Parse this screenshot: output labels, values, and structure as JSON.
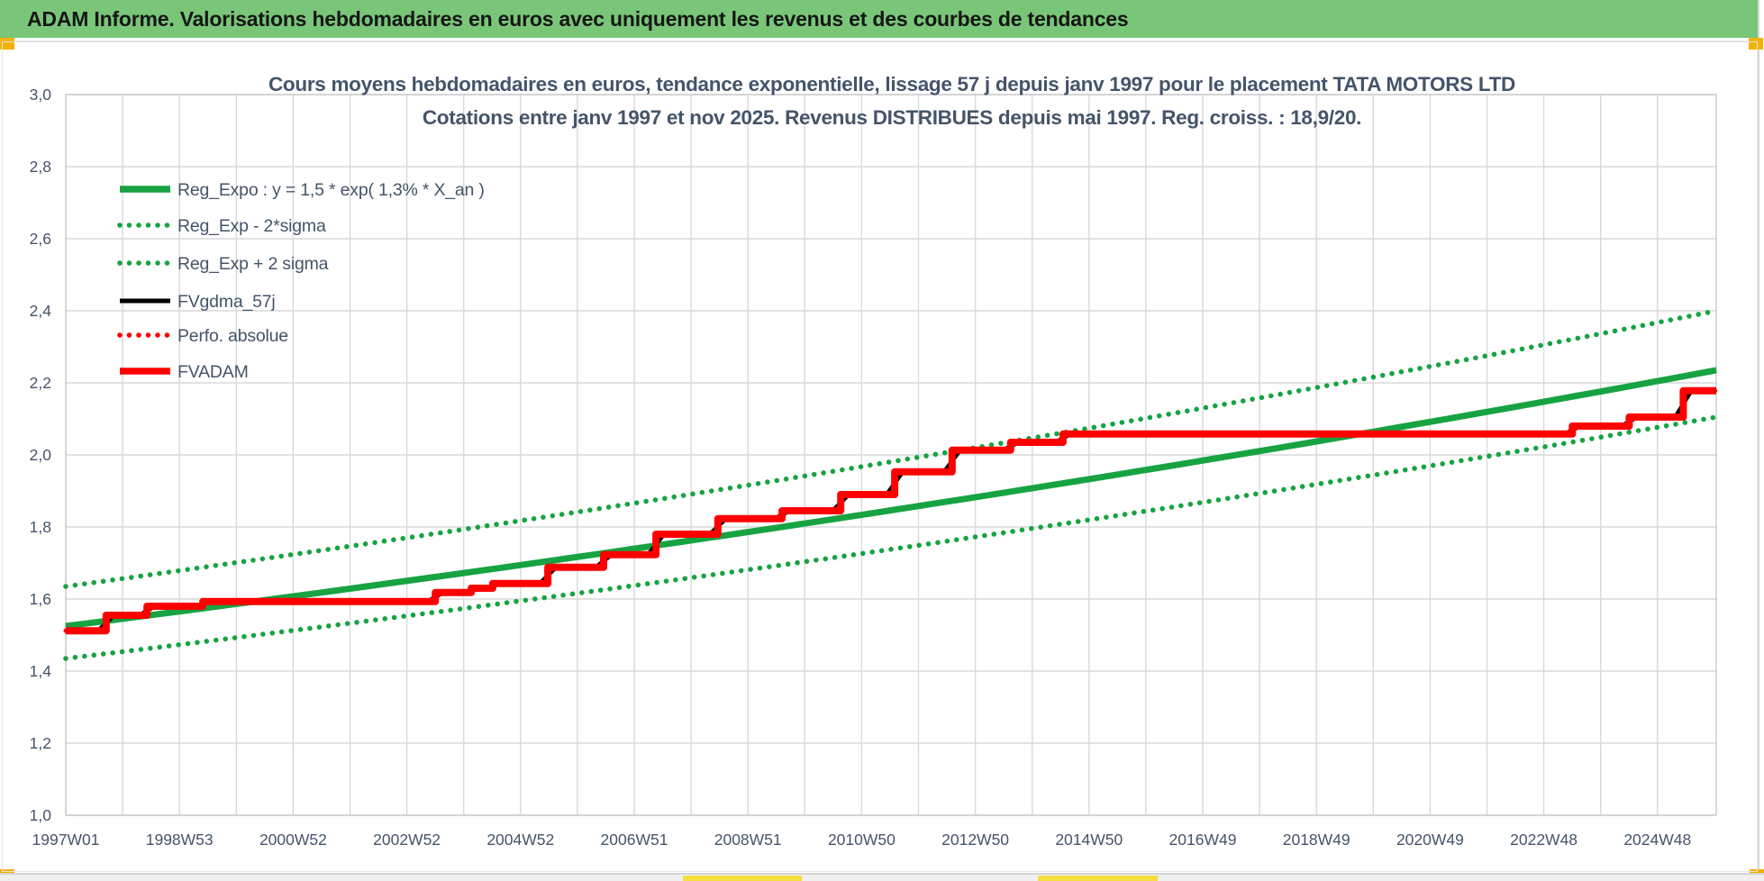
{
  "banner": {
    "text": "ADAM Informe. Valorisations hebdomadaires en euros avec uniquement les revenus et des courbes de tendances",
    "bg_color": "#79C679",
    "handle_color": "#F2B200"
  },
  "chart_data": {
    "type": "line",
    "title_line1": "Cours moyens hebdomadaires en euros, tendance exponentielle, lissage 57 j depuis janv 1997 pour le placement TATA MOTORS LTD",
    "title_line2": "Cotations entre janv 1997 et nov 2025. Revenus DISTRIBUES depuis mai 1997. Reg. croiss. : 18,9/20.",
    "ylabel": "",
    "xlabel": "",
    "ylim": [
      1.0,
      3.0
    ],
    "y_tick_labels": [
      "3,0",
      "2,8",
      "2,6",
      "2,4",
      "2,2",
      "2,0",
      "1,8",
      "1,6",
      "1,4",
      "1,2",
      "1,0"
    ],
    "x_tick_labels": [
      "1997W01",
      "1998W53",
      "2000W52",
      "2002W52",
      "2004W52",
      "2006W51",
      "2008W51",
      "2010W50",
      "2012W50",
      "2014W50",
      "2016W49",
      "2018W49",
      "2020W49",
      "2022W48",
      "2024W48"
    ],
    "x_axis": {
      "start_label": "janv 1997",
      "end_label": "nov 2025",
      "span_years": 29.03,
      "years_per_labeled_tick": 2,
      "grid": "yearly"
    },
    "colors": {
      "green": "#17A342",
      "red": "#FE0000",
      "black": "#000000",
      "grid": "#D9D9D9",
      "text": "#44546A"
    },
    "legend_position": "upper-left-inside",
    "series": [
      {
        "name": "Reg_Expo : y = 1,5 * exp( 1,3% *  X_an )",
        "color": "#17A342",
        "style": "solid",
        "kind": "expo",
        "start_value": 1.525,
        "end_value": 2.235
      },
      {
        "name": "Reg_Exp - 2*sigma",
        "color": "#17A342",
        "style": "dotted",
        "kind": "expo",
        "start_value": 1.435,
        "end_value": 2.105
      },
      {
        "name": "Reg_Exp + 2 sigma",
        "color": "#17A342",
        "style": "dotted",
        "kind": "expo",
        "start_value": 1.635,
        "end_value": 2.4
      },
      {
        "name": "FVgdma_57j",
        "color": "#000000",
        "style": "solid",
        "kind": "step-smoothed",
        "ref": "steps"
      },
      {
        "name": "Perfo. absolue",
        "color": "#FE0000",
        "style": "dotted",
        "kind": "step",
        "ref": "steps"
      },
      {
        "name": "FVADAM",
        "color": "#FE0000",
        "style": "solid",
        "kind": "step",
        "ref": "steps"
      }
    ],
    "steps": [
      {
        "x_years": 0.0,
        "value": 1.512
      },
      {
        "x_years": 0.71,
        "value": 1.555
      },
      {
        "x_years": 1.43,
        "value": 1.58
      },
      {
        "x_years": 2.41,
        "value": 1.593
      },
      {
        "x_years": 6.5,
        "value": 1.618
      },
      {
        "x_years": 7.13,
        "value": 1.63
      },
      {
        "x_years": 7.51,
        "value": 1.643
      },
      {
        "x_years": 8.48,
        "value": 1.688
      },
      {
        "x_years": 9.46,
        "value": 1.723
      },
      {
        "x_years": 10.38,
        "value": 1.78
      },
      {
        "x_years": 11.47,
        "value": 1.823
      },
      {
        "x_years": 12.6,
        "value": 1.845
      },
      {
        "x_years": 13.63,
        "value": 1.89
      },
      {
        "x_years": 14.58,
        "value": 1.953
      },
      {
        "x_years": 15.59,
        "value": 2.013
      },
      {
        "x_years": 16.62,
        "value": 2.035
      },
      {
        "x_years": 17.54,
        "value": 2.058
      },
      {
        "x_years": 26.5,
        "value": 2.08
      },
      {
        "x_years": 27.5,
        "value": 2.105
      },
      {
        "x_years": 28.45,
        "value": 2.178
      }
    ]
  }
}
